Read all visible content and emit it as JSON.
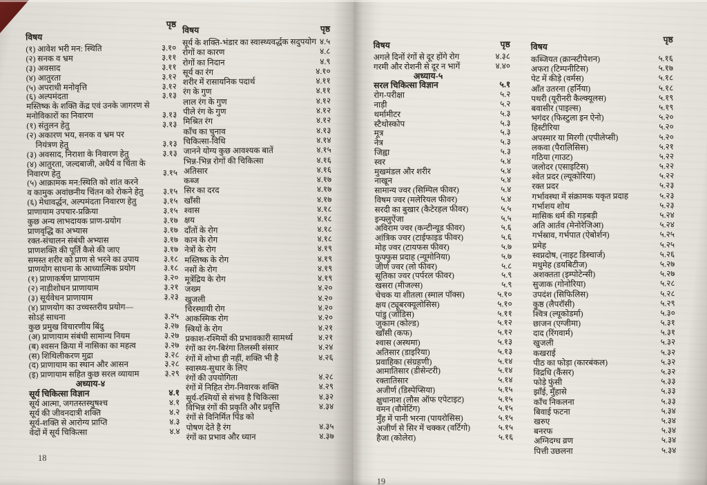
{
  "colors": {
    "cover_corner": "#6d211c",
    "paper": "#e7e4de",
    "ink": "#2b2722"
  },
  "left_page": {
    "page_number": "18",
    "columns": [
      {
        "header_subject": "विषय",
        "header_page": "पृष्ठ",
        "entries": [
          {
            "t": "(१) आवेश भरी मन: स्थिति",
            "p": "३.१०"
          },
          {
            "t": "(२) सनक व भ्रम",
            "p": "३.११"
          },
          {
            "t": "(३) अवसाद",
            "p": "३.११"
          },
          {
            "t": "(४) आतुरता",
            "p": "३.१२"
          },
          {
            "t": "(५) अपराधी मनोवृत्ति",
            "p": "३.१२"
          },
          {
            "t": "(६) अल्पमंदता",
            "p": "३.१३"
          },
          {
            "t": "मस्तिष्क के शक्ति केंद्र एवं उनके जागरण से",
            "t2": "मनोविकारों का निवारण",
            "p": "३.१३"
          },
          {
            "t": "(१) संतुलन हेतु",
            "p": "३.१३"
          },
          {
            "t": "(२) अकारण भय, सनक व भ्रम पर",
            "t2": "नियंत्रण हेतु",
            "p": "३.१३",
            "indent": true
          },
          {
            "t": "(३) अवसाद, निराशा के निवारण हेतु",
            "p": "३.१३"
          },
          {
            "t": "(४) आतुरता, जल्दबाजी, अधैर्य व चिंता के",
            "t2": "निवारण हेतु",
            "p": "३.१५"
          },
          {
            "t": "(५) आक्रामक मन:स्थिति को शांत करने",
            "t2": "व कामुक अवांछनीय चिंतन को रोकने हेतु",
            "p": "३.१५"
          },
          {
            "t": "(६) मेधावर्द्धन, अल्पमंदता निवारण हेतु",
            "p": "३.१५"
          },
          {
            "t": "प्राणायाम उपचार-प्रक्रिया",
            "p": "३.१५"
          },
          {
            "t": "कुछ अन्य लाभदायक प्राण-प्रयोग",
            "p": "३.१७"
          },
          {
            "t": "प्राणवृद्धि का अभ्यास",
            "p": "३.१७"
          },
          {
            "t": "रक्त-संचालन संबंधी अभ्यास",
            "p": "३.१७"
          },
          {
            "t": "प्राणशक्ति की पूर्ति कैसे की जाए",
            "p": "३.१७"
          },
          {
            "t": "समस्त शरीर को प्राण से भरने का उपाय",
            "p": "३.१८"
          },
          {
            "t": "प्राणयोग साधना के आध्यात्मिक प्रयोग",
            "p": "३.१८"
          },
          {
            "t": "(१) प्राणाकर्षण प्राणायाम",
            "p": "३.२०"
          },
          {
            "t": "(२) नाड़ीशोधन प्राणायाम",
            "p": "३.२१"
          },
          {
            "t": "(३) सूर्यवेधन प्राणायाम",
            "p": "३.२३"
          },
          {
            "t": "(४) प्राणयोग का उच्चस्तरीय प्रयोग—",
            "t2": "सोऽहं साधना",
            "p": "३.२५"
          },
          {
            "t": "कुछ प्रमुख विचारणीय बिंदु",
            "p": "३.२७"
          },
          {
            "t": "(अ) प्राणायाम संबंधी सामान्य नियम",
            "p": "३.२७"
          },
          {
            "t": "(ब) श्वसन क्रिया में नासिका का महत्व",
            "p": "३.२७"
          },
          {
            "t": "(स) शिथिलीकरण मुद्रा",
            "p": "३.२८"
          },
          {
            "t": "(द) प्राणायाम का स्थान और आसन",
            "p": "३.२८"
          },
          {
            "t": "(इ) प्राणायाम सहित कुछ सरल व्यायाम",
            "p": "३.२९"
          },
          {
            "type": "chapter",
            "t": "अध्याय-४"
          },
          {
            "t": "सूर्य चिकित्सा विज्ञान",
            "p": "४.१",
            "bold": true
          },
          {
            "t": "सूर्य आत्मा, जगतस्तस्थुषश्च",
            "p": "४.१"
          },
          {
            "t": "सूर्य की जीवनदात्री शक्ति",
            "p": "४.२"
          },
          {
            "t": "सूर्य-शक्ति से आरोग्य प्राप्ति",
            "p": "४.३"
          },
          {
            "t": "वेदों में सूर्य चिकित्सा",
            "p": "४.४"
          }
        ]
      },
      {
        "header_subject": "विषय",
        "header_page": "पृष्ठ",
        "entries": [
          {
            "t": "सूर्य के शक्ति-भंडार का स्वास्थ्यवर्द्धक सदुपयोग",
            "p": "४.५"
          },
          {
            "t": "रोगों का कारण",
            "p": "४.८"
          },
          {
            "t": "रोगों का निदान",
            "p": "४.९"
          },
          {
            "t": "सूर्य का रंग",
            "p": "४.१०"
          },
          {
            "t": "शरीर में रासायनिक पदार्थ",
            "p": "४.११"
          },
          {
            "t": "रंग के गुण",
            "p": "४.११"
          },
          {
            "t": "लाल रंग के गुण",
            "p": "४.१२"
          },
          {
            "t": "पीले रंग के गुण",
            "p": "४.१२"
          },
          {
            "t": "मिश्रित रंग",
            "p": "४.१२"
          },
          {
            "t": "काँच का चुनाव",
            "p": "४.१३"
          },
          {
            "t": "चिकित्सा-विधि",
            "p": "४.१४"
          },
          {
            "t": "जानने योग्य कुछ आवश्यक बातें",
            "p": "४.१५"
          },
          {
            "t": "भिन्न-भिन्न रोगों की चिकित्सा",
            "p": "४.१६"
          },
          {
            "t": "अतिसार",
            "p": "४.१६"
          },
          {
            "t": "कब्ज",
            "p": "४.१७"
          },
          {
            "t": "सिर का दरद",
            "p": "४.१७"
          },
          {
            "t": "खाँसी",
            "p": "४.१७"
          },
          {
            "t": "श्वास",
            "p": "४.१८"
          },
          {
            "t": "क्षय",
            "p": "४.१८"
          },
          {
            "t": "दाँतों के रोग",
            "p": "४.१८"
          },
          {
            "t": "कान के रोग",
            "p": "४.१८"
          },
          {
            "t": "नेत्रों के रोग",
            "p": "४.१९"
          },
          {
            "t": "मस्तिष्क के रोग",
            "p": "४.१९"
          },
          {
            "t": "नसों के रोग",
            "p": "४.१९"
          },
          {
            "t": "मूत्रेंद्रिय के रोग",
            "p": "४.१९"
          },
          {
            "t": "जख्म",
            "p": "४.२०"
          },
          {
            "t": "खुजली",
            "p": "४.२०"
          },
          {
            "t": "चिरस्थायी रोग",
            "p": "४.२०"
          },
          {
            "t": "आकस्मिक रोग",
            "p": "४.२०"
          },
          {
            "t": "स्त्रियों के रोग",
            "p": "४.२१"
          },
          {
            "t": "प्रकाश-रश्मियों की प्रभावकारी सामर्थ्य",
            "p": "४.२१"
          },
          {
            "t": "रंगों का रंग-बिरंगा तिलस्मी संसार",
            "p": "४.२४"
          },
          {
            "t": "रंगों में शोभा ही नहीं, शक्ति भी है",
            "p": "४.२६"
          },
          {
            "t": "स्वास्थ्य-सुधार के लिए",
            "t2": "रंगों की उपयोगिता",
            "p": "४.२८"
          },
          {
            "t": "रंगों में निहित रोग-निवारक शक्ति",
            "p": "४.२९"
          },
          {
            "t": "सूर्य-रश्मियों से संभव है चिकित्सा",
            "p": "४.३२"
          },
          {
            "t": "विभिन्न रंगों की प्रकृति और प्रवृत्ति",
            "p": "४.३४"
          },
          {
            "t": "रंगों से विनिर्मित पिंड को",
            "t2": "पोषण देते है रंग",
            "p": "४.३५"
          },
          {
            "t": "रंगों का प्रभाव और ध्यान",
            "p": "४.३७"
          }
        ]
      }
    ]
  },
  "right_page": {
    "page_number": "19",
    "columns": [
      {
        "header_subject": "विषय",
        "header_page": "पृष्ठ",
        "entries": [
          {
            "t": "अगले दिनों रंगों से दूर होंगे रोग",
            "p": "४.३८"
          },
          {
            "t": "गरमी और रोशनी से दूर न भागें",
            "p": "४.४०"
          },
          {
            "type": "chapter",
            "t": "अध्याय-५"
          },
          {
            "t": "सरल चिकित्सा विज्ञान",
            "p": "५.१",
            "bold": true
          },
          {
            "t": "रोग-परीक्षा",
            "p": "५.२"
          },
          {
            "t": "नाड़ी",
            "p": "५.२"
          },
          {
            "t": "थर्मामीटर",
            "p": "५.३"
          },
          {
            "t": "स्टैथोस्कोप",
            "p": "५.३"
          },
          {
            "t": "मूत्र",
            "p": "५.३"
          },
          {
            "t": "नेत्र",
            "p": "५.३"
          },
          {
            "t": "जिह्वा",
            "p": "५.३"
          },
          {
            "t": "स्वर",
            "p": "५.४"
          },
          {
            "t": "मुखमंडल और शरीर",
            "p": "५.४"
          },
          {
            "t": "नाखून",
            "p": "५.४"
          },
          {
            "t": "सामान्य ज्वर (सिम्पिल फीवर)",
            "p": "५.४"
          },
          {
            "t": "विषम ज्वर (मलेरियल फीवर)",
            "p": "५.४"
          },
          {
            "t": "सरदी का बुखार (कैटेरहल फीवर)",
            "p": "५.५"
          },
          {
            "t": "इन्फ्लुऐंजा",
            "p": "५.५"
          },
          {
            "t": "अविराम ज्वर (कन्टीन्यूड फीवर)",
            "p": "५.६"
          },
          {
            "t": "आंत्रिक ज्वर (टाईफाइड फीवर)",
            "p": "५.६"
          },
          {
            "t": "मोह ज्वर (टायफस फीवर)",
            "p": "५.७"
          },
          {
            "t": "फुफ्फुस प्रदाह (न्यूमोनिया)",
            "p": "५.७"
          },
          {
            "t": "जीर्ण ज्वर (लो फीवर)",
            "p": "५.८"
          },
          {
            "t": "सूतिका ज्वर (पर्परल फीवर)",
            "p": "५.९"
          },
          {
            "t": "खसरा (मीजल्स)",
            "p": "५.९"
          },
          {
            "t": "चेचक या शीतला (स्माल पॉक्स)",
            "p": "५.१०"
          },
          {
            "t": "क्षय (ट्यूबरक्यूलोसिस)",
            "p": "५.१०"
          },
          {
            "t": "पांडु (जोंडिस)",
            "p": "५.११"
          },
          {
            "t": "जुकाम (कोल्ड)",
            "p": "५.१२"
          },
          {
            "t": "खाँसी (कफ)",
            "p": "५.१२"
          },
          {
            "t": "श्वास (अस्थमा)",
            "p": "५.१३"
          },
          {
            "t": "अतिसार (डाइरिया)",
            "p": "५.१३"
          },
          {
            "t": "प्रवाहिका (संग्रहणी)",
            "p": "५.१४"
          },
          {
            "t": "आमातिसार (डीसेन्टरी)",
            "p": "५.१४"
          },
          {
            "t": "रक्तातिसार",
            "p": "५.१४"
          },
          {
            "t": "अजीर्ण (डिस्पेप्सिया)",
            "p": "५.१५"
          },
          {
            "t": "क्षुधानाश (लौस ऑफ एपेटाइट)",
            "p": "५.१५"
          },
          {
            "t": "वमन (वौमेटिंग)",
            "p": "५.१५"
          },
          {
            "t": "मुँह में पानी भरना (पायरोसिस)",
            "p": "५.१५"
          },
          {
            "t": "अजीर्ण से सिर में चक्कर (वर्टिगो)",
            "p": "५.१५"
          },
          {
            "t": "हैजा (कोलेरा)",
            "p": "५.१६"
          }
        ]
      },
      {
        "header_subject": "विषय",
        "header_page": "पृष्ठ",
        "entries": [
          {
            "t": "कब्जियत (क्रान्स्टीपेशन)",
            "p": "५.१६"
          },
          {
            "t": "अफरा (टिम्पनीटिस)",
            "p": "५.१७"
          },
          {
            "t": "पेट में कीड़े (वर्मस)",
            "p": "५.१८"
          },
          {
            "t": "आँत उतरना (हर्निया)",
            "p": "५.१८"
          },
          {
            "t": "पथरी (यूरीनरी कैल्क्यूलस)",
            "p": "५.१९"
          },
          {
            "t": "बवासीर (पाइल्स)",
            "p": "५.१९"
          },
          {
            "t": "भगंदर (फिस्टुला इन ऐनो)",
            "p": "५.२०"
          },
          {
            "t": "हिस्टीरिया",
            "p": "५.२०"
          },
          {
            "t": "अपस्मार या मिरगी (एपीलेप्सी)",
            "p": "५.२०"
          },
          {
            "t": "लकवा (पैरालिसिस)",
            "p": "५.२१"
          },
          {
            "t": "गठिया (गाउट)",
            "p": "५.२२"
          },
          {
            "t": "जलोदर (एसाइटिस)",
            "p": "५.२२"
          },
          {
            "t": "श्वेत प्रदर (ल्यूकोरिया)",
            "p": "५.२२"
          },
          {
            "t": "रक्त प्रदर",
            "p": "५.२३"
          },
          {
            "t": "गर्भावस्था में संक्रामक यकृत प्रदाह",
            "p": "५.२३"
          },
          {
            "t": "गर्भाशय शोथ",
            "p": "५.२३"
          },
          {
            "t": "मासिक धर्म की गड़बड़ी",
            "p": "५.२४"
          },
          {
            "t": "अति आर्तव (मेनोरेजिआ)",
            "p": "५.२४"
          },
          {
            "t": "गर्भस्राव, गर्भपात (ऐबोर्शन)",
            "p": "५.२५"
          },
          {
            "t": "प्रमेह",
            "p": "५.२५"
          },
          {
            "t": "स्वप्नदोष, (नाइट डिस्चार्ज)",
            "p": "५.२६"
          },
          {
            "t": "मधुमेह (डयबिटीज)",
            "p": "५.२७"
          },
          {
            "t": "अशक्तता (इम्पोटेन्सी)",
            "p": "५.२७"
          },
          {
            "t": "सुजाक (गोनोरिया)",
            "p": "५.२८"
          },
          {
            "t": "उपदंश (सिफिलिस)",
            "p": "५.२८"
          },
          {
            "t": "कुष्ठ (लैपरॉसी)",
            "p": "५.२९"
          },
          {
            "t": "श्वित्र (ल्यूकोडर्मा)",
            "p": "५.३०"
          },
          {
            "t": "छाजन (एग्जीमा)",
            "p": "५.३१"
          },
          {
            "t": "दाद (रिंगवार्म)",
            "p": "५.३१"
          },
          {
            "t": "खुजली",
            "p": "५.३२"
          },
          {
            "t": "कखराई",
            "p": "५.३२"
          },
          {
            "t": "पीठ का फोड़ा (कारबंकल)",
            "p": "५.३२"
          },
          {
            "t": "विद्रधि (कैंसर)",
            "p": "५.३२"
          },
          {
            "t": "फोड़े फुंसी",
            "p": "५.३३"
          },
          {
            "t": "झाँई, मुँहासे",
            "p": "५.३३"
          },
          {
            "t": "काँच निकलना",
            "p": "५.३३"
          },
          {
            "t": "बिवाई फटना",
            "p": "५.३४"
          },
          {
            "t": "खरुए",
            "p": "५.३४"
          },
          {
            "t": "बनरफ",
            "p": "५.३४"
          },
          {
            "t": "अग्निदग्ध व्रण",
            "p": "५.३४"
          },
          {
            "t": "पित्ती उछलना",
            "p": "५.३४"
          }
        ]
      }
    ]
  }
}
